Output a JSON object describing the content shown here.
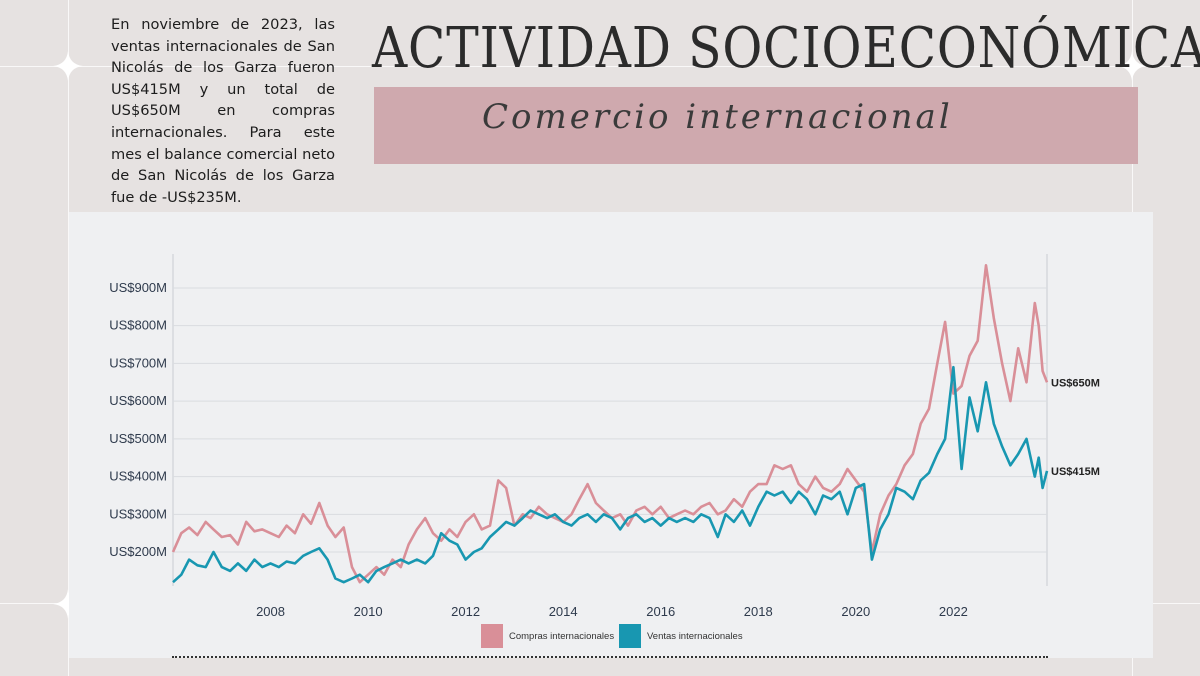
{
  "intro_text": "En noviembre de 2023, las ventas internacionales de San Nicolás de los Garza fueron US$415M y un total de US$650M en compras internacionales. Para este mes el balance comercial neto de San Nicolás de los Garza fue de -US$235M.",
  "title": "ACTIVIDAD SOCIOECONÓMICA",
  "subtitle": "Comercio internacional",
  "colors": {
    "background": "#e6e2e1",
    "banner": "#cfa9ae",
    "compras": "#d98f98",
    "ventas": "#1897b1"
  },
  "chart_data": {
    "type": "line",
    "title": "",
    "xlabel": "",
    "ylabel": "",
    "xlim": [
      2006.0,
      2023.92
    ],
    "ylim": [
      110,
      990
    ],
    "grid": true,
    "legend_position": "bottom-center",
    "y_ticks": [
      {
        "value": 200,
        "label": "US$200M"
      },
      {
        "value": 300,
        "label": "US$300M"
      },
      {
        "value": 400,
        "label": "US$400M"
      },
      {
        "value": 500,
        "label": "US$500M"
      },
      {
        "value": 600,
        "label": "US$600M"
      },
      {
        "value": 700,
        "label": "US$700M"
      },
      {
        "value": 800,
        "label": "US$800M"
      },
      {
        "value": 900,
        "label": "US$900M"
      }
    ],
    "x_ticks": [
      {
        "value": 2008,
        "label": "2008"
      },
      {
        "value": 2010,
        "label": "2010"
      },
      {
        "value": 2012,
        "label": "2012"
      },
      {
        "value": 2014,
        "label": "2014"
      },
      {
        "value": 2016,
        "label": "2016"
      },
      {
        "value": 2018,
        "label": "2018"
      },
      {
        "value": 2020,
        "label": "2020"
      },
      {
        "value": 2022,
        "label": "2022"
      }
    ],
    "series": [
      {
        "name": "Compras internacionales",
        "color": "#d98f98",
        "end_label": "US$650M",
        "points": [
          [
            2006.0,
            200
          ],
          [
            2006.17,
            250
          ],
          [
            2006.33,
            265
          ],
          [
            2006.5,
            245
          ],
          [
            2006.67,
            280
          ],
          [
            2006.83,
            260
          ],
          [
            2007.0,
            240
          ],
          [
            2007.17,
            245
          ],
          [
            2007.33,
            220
          ],
          [
            2007.5,
            280
          ],
          [
            2007.67,
            255
          ],
          [
            2007.83,
            260
          ],
          [
            2008.0,
            250
          ],
          [
            2008.17,
            240
          ],
          [
            2008.33,
            270
          ],
          [
            2008.5,
            250
          ],
          [
            2008.67,
            300
          ],
          [
            2008.83,
            275
          ],
          [
            2009.0,
            330
          ],
          [
            2009.17,
            270
          ],
          [
            2009.33,
            240
          ],
          [
            2009.5,
            265
          ],
          [
            2009.67,
            160
          ],
          [
            2009.83,
            120
          ],
          [
            2010.0,
            140
          ],
          [
            2010.17,
            160
          ],
          [
            2010.33,
            140
          ],
          [
            2010.5,
            180
          ],
          [
            2010.67,
            160
          ],
          [
            2010.83,
            220
          ],
          [
            2011.0,
            260
          ],
          [
            2011.17,
            290
          ],
          [
            2011.33,
            250
          ],
          [
            2011.5,
            230
          ],
          [
            2011.67,
            260
          ],
          [
            2011.83,
            240
          ],
          [
            2012.0,
            280
          ],
          [
            2012.17,
            300
          ],
          [
            2012.33,
            260
          ],
          [
            2012.5,
            270
          ],
          [
            2012.67,
            390
          ],
          [
            2012.83,
            370
          ],
          [
            2013.0,
            270
          ],
          [
            2013.17,
            300
          ],
          [
            2013.33,
            290
          ],
          [
            2013.5,
            320
          ],
          [
            2013.67,
            300
          ],
          [
            2013.83,
            290
          ],
          [
            2014.0,
            280
          ],
          [
            2014.17,
            300
          ],
          [
            2014.33,
            340
          ],
          [
            2014.5,
            380
          ],
          [
            2014.67,
            330
          ],
          [
            2014.83,
            310
          ],
          [
            2015.0,
            290
          ],
          [
            2015.17,
            300
          ],
          [
            2015.33,
            270
          ],
          [
            2015.5,
            310
          ],
          [
            2015.67,
            320
          ],
          [
            2015.83,
            300
          ],
          [
            2016.0,
            320
          ],
          [
            2016.17,
            290
          ],
          [
            2016.33,
            300
          ],
          [
            2016.5,
            310
          ],
          [
            2016.67,
            300
          ],
          [
            2016.83,
            320
          ],
          [
            2017.0,
            330
          ],
          [
            2017.17,
            300
          ],
          [
            2017.33,
            310
          ],
          [
            2017.5,
            340
          ],
          [
            2017.67,
            320
          ],
          [
            2017.83,
            360
          ],
          [
            2018.0,
            380
          ],
          [
            2018.17,
            380
          ],
          [
            2018.33,
            430
          ],
          [
            2018.5,
            420
          ],
          [
            2018.67,
            430
          ],
          [
            2018.83,
            380
          ],
          [
            2019.0,
            360
          ],
          [
            2019.17,
            400
          ],
          [
            2019.33,
            370
          ],
          [
            2019.5,
            360
          ],
          [
            2019.67,
            380
          ],
          [
            2019.83,
            420
          ],
          [
            2020.0,
            390
          ],
          [
            2020.17,
            360
          ],
          [
            2020.33,
            200
          ],
          [
            2020.5,
            300
          ],
          [
            2020.67,
            350
          ],
          [
            2020.83,
            380
          ],
          [
            2021.0,
            430
          ],
          [
            2021.17,
            460
          ],
          [
            2021.33,
            540
          ],
          [
            2021.5,
            580
          ],
          [
            2021.67,
            700
          ],
          [
            2021.83,
            810
          ],
          [
            2022.0,
            620
          ],
          [
            2022.17,
            640
          ],
          [
            2022.33,
            720
          ],
          [
            2022.5,
            760
          ],
          [
            2022.67,
            960
          ],
          [
            2022.83,
            820
          ],
          [
            2023.0,
            700
          ],
          [
            2023.17,
            600
          ],
          [
            2023.33,
            740
          ],
          [
            2023.5,
            650
          ],
          [
            2023.67,
            860
          ],
          [
            2023.75,
            800
          ],
          [
            2023.83,
            680
          ],
          [
            2023.92,
            650
          ]
        ]
      },
      {
        "name": "Ventas internacionales",
        "color": "#1897b1",
        "end_label": "US$415M",
        "points": [
          [
            2006.0,
            120
          ],
          [
            2006.17,
            140
          ],
          [
            2006.33,
            180
          ],
          [
            2006.5,
            165
          ],
          [
            2006.67,
            160
          ],
          [
            2006.83,
            200
          ],
          [
            2007.0,
            160
          ],
          [
            2007.17,
            150
          ],
          [
            2007.33,
            170
          ],
          [
            2007.5,
            150
          ],
          [
            2007.67,
            180
          ],
          [
            2007.83,
            160
          ],
          [
            2008.0,
            170
          ],
          [
            2008.17,
            160
          ],
          [
            2008.33,
            175
          ],
          [
            2008.5,
            170
          ],
          [
            2008.67,
            190
          ],
          [
            2008.83,
            200
          ],
          [
            2009.0,
            210
          ],
          [
            2009.17,
            180
          ],
          [
            2009.33,
            130
          ],
          [
            2009.5,
            120
          ],
          [
            2009.67,
            130
          ],
          [
            2009.83,
            140
          ],
          [
            2010.0,
            120
          ],
          [
            2010.17,
            150
          ],
          [
            2010.33,
            160
          ],
          [
            2010.5,
            170
          ],
          [
            2010.67,
            180
          ],
          [
            2010.83,
            170
          ],
          [
            2011.0,
            180
          ],
          [
            2011.17,
            170
          ],
          [
            2011.33,
            190
          ],
          [
            2011.5,
            250
          ],
          [
            2011.67,
            230
          ],
          [
            2011.83,
            220
          ],
          [
            2012.0,
            180
          ],
          [
            2012.17,
            200
          ],
          [
            2012.33,
            210
          ],
          [
            2012.5,
            240
          ],
          [
            2012.67,
            260
          ],
          [
            2012.83,
            280
          ],
          [
            2013.0,
            270
          ],
          [
            2013.17,
            290
          ],
          [
            2013.33,
            310
          ],
          [
            2013.5,
            300
          ],
          [
            2013.67,
            290
          ],
          [
            2013.83,
            300
          ],
          [
            2014.0,
            280
          ],
          [
            2014.17,
            270
          ],
          [
            2014.33,
            290
          ],
          [
            2014.5,
            300
          ],
          [
            2014.67,
            280
          ],
          [
            2014.83,
            300
          ],
          [
            2015.0,
            290
          ],
          [
            2015.17,
            260
          ],
          [
            2015.33,
            290
          ],
          [
            2015.5,
            300
          ],
          [
            2015.67,
            280
          ],
          [
            2015.83,
            290
          ],
          [
            2016.0,
            270
          ],
          [
            2016.17,
            290
          ],
          [
            2016.33,
            280
          ],
          [
            2016.5,
            290
          ],
          [
            2016.67,
            280
          ],
          [
            2016.83,
            300
          ],
          [
            2017.0,
            290
          ],
          [
            2017.17,
            240
          ],
          [
            2017.33,
            300
          ],
          [
            2017.5,
            280
          ],
          [
            2017.67,
            310
          ],
          [
            2017.83,
            270
          ],
          [
            2018.0,
            320
          ],
          [
            2018.17,
            360
          ],
          [
            2018.33,
            350
          ],
          [
            2018.5,
            360
          ],
          [
            2018.67,
            330
          ],
          [
            2018.83,
            360
          ],
          [
            2019.0,
            340
          ],
          [
            2019.17,
            300
          ],
          [
            2019.33,
            350
          ],
          [
            2019.5,
            340
          ],
          [
            2019.67,
            360
          ],
          [
            2019.83,
            300
          ],
          [
            2020.0,
            370
          ],
          [
            2020.17,
            380
          ],
          [
            2020.33,
            180
          ],
          [
            2020.5,
            260
          ],
          [
            2020.67,
            300
          ],
          [
            2020.83,
            370
          ],
          [
            2021.0,
            360
          ],
          [
            2021.17,
            340
          ],
          [
            2021.33,
            390
          ],
          [
            2021.5,
            410
          ],
          [
            2021.67,
            460
          ],
          [
            2021.83,
            500
          ],
          [
            2022.0,
            690
          ],
          [
            2022.17,
            420
          ],
          [
            2022.33,
            610
          ],
          [
            2022.5,
            520
          ],
          [
            2022.67,
            650
          ],
          [
            2022.83,
            540
          ],
          [
            2023.0,
            480
          ],
          [
            2023.17,
            430
          ],
          [
            2023.33,
            460
          ],
          [
            2023.5,
            500
          ],
          [
            2023.67,
            400
          ],
          [
            2023.75,
            450
          ],
          [
            2023.83,
            370
          ],
          [
            2023.92,
            415
          ]
        ]
      }
    ]
  }
}
